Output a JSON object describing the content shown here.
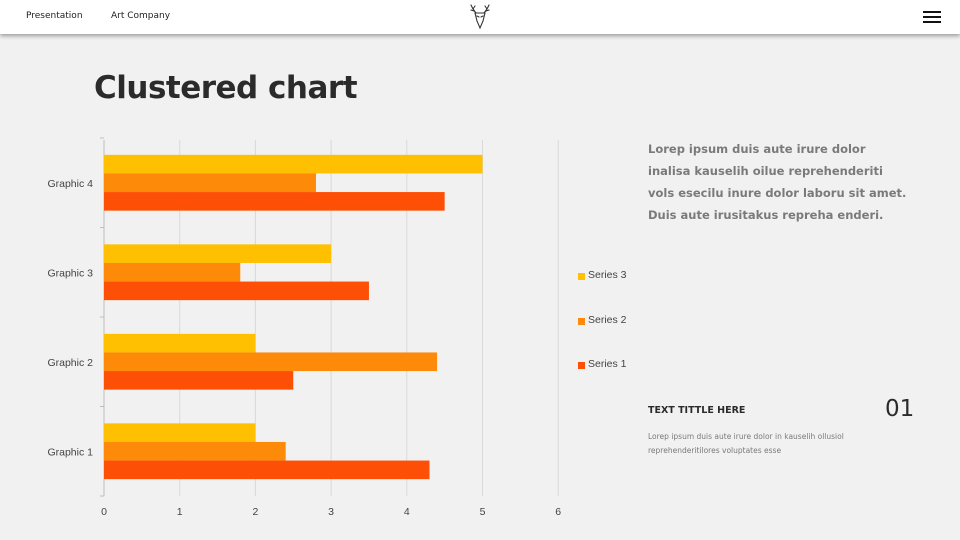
{
  "header": {
    "nav": [
      "Presentation",
      "Art Company"
    ],
    "logo_icon": "deer-head-icon",
    "menu_icon": "hamburger-menu-icon"
  },
  "slide": {
    "title": "Clustered chart",
    "description": "Lorep  ipsum duis aute irure dolor inalisa kauselih oilue reprehenderiti vols esecilu inure dolor laboru sit amet. Duis aute irusitakus repreha enderi.",
    "text_block": {
      "title": "TEXT TITTLE HERE",
      "number": "01",
      "body": "Lorep  ipsum duis aute irure dolor in kauselih ollusiol reprehenderitilores voluptates esse"
    }
  },
  "chart_data": {
    "type": "bar",
    "orientation": "horizontal",
    "categories": [
      "Graphic 1",
      "Graphic 2",
      "Graphic 3",
      "Graphic 4"
    ],
    "series": [
      {
        "name": "Series 1",
        "values": [
          4.3,
          2.5,
          3.5,
          4.5
        ],
        "color": "#fe4f07"
      },
      {
        "name": "Series 2",
        "values": [
          2.4,
          4.4,
          1.8,
          2.8
        ],
        "color": "#fd8a08"
      },
      {
        "name": "Series 3",
        "values": [
          2.0,
          2.0,
          3.0,
          5.0
        ],
        "color": "#fec000"
      }
    ],
    "legend_order": [
      "Series 3",
      "Series 2",
      "Series 1"
    ],
    "xlim": [
      0,
      6
    ],
    "xticks": [
      "0",
      "1",
      "2",
      "3",
      "4",
      "5",
      "6"
    ],
    "grid": true,
    "legend_position": "right",
    "title": "",
    "xlabel": "",
    "ylabel": ""
  }
}
